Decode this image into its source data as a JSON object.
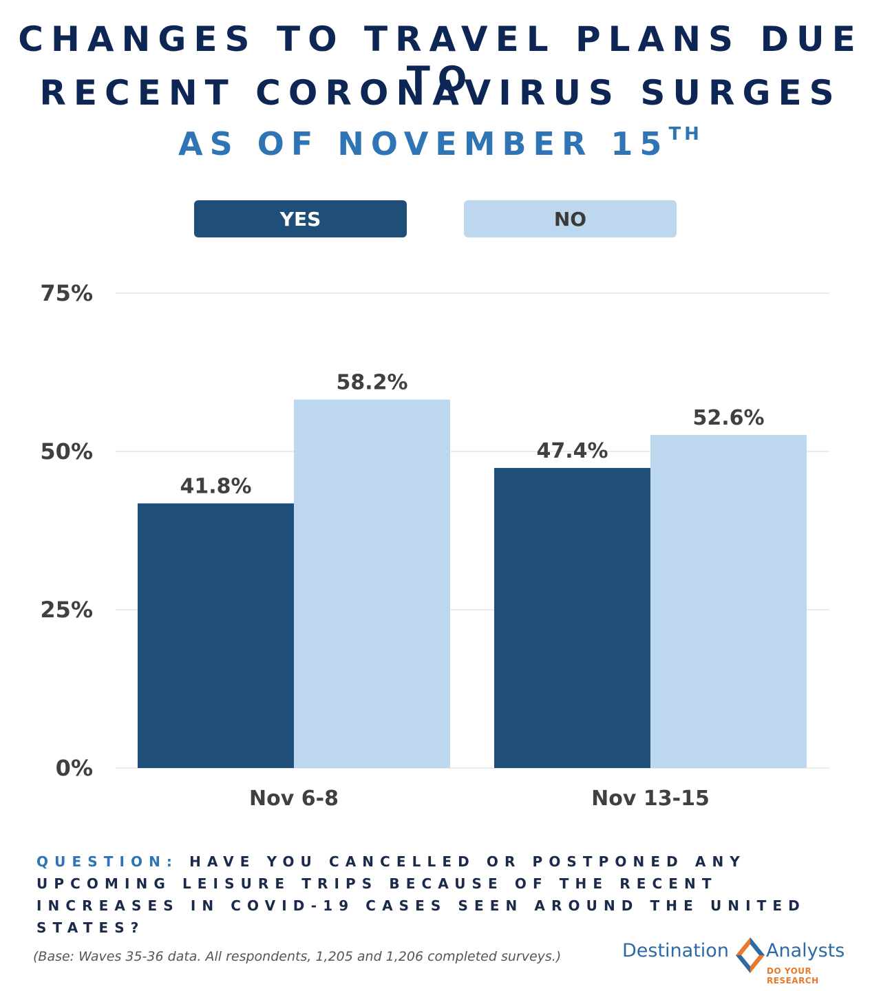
{
  "title_line1": "CHANGES TO TRAVEL PLANS DUE TO",
  "title_line2": "RECENT CORONAVIRUS SURGES",
  "subtitle": "AS OF NOVEMBER 15",
  "subtitle_suffix": "TH",
  "legend": {
    "yes": "YES",
    "no": "NO"
  },
  "colors": {
    "yes": "#1f4e79",
    "no": "#bdd7ee",
    "title": "#0e2654",
    "accent": "#2f74b5"
  },
  "chart_data": {
    "type": "bar",
    "categories": [
      "Nov 6-8",
      "Nov 13-15"
    ],
    "series": [
      {
        "name": "YES",
        "values": [
          41.8,
          47.4
        ],
        "labels": [
          "41.8%",
          "47.4%"
        ]
      },
      {
        "name": "NO",
        "values": [
          58.2,
          52.6
        ],
        "labels": [
          "58.2%",
          "52.6%"
        ]
      }
    ],
    "ylim": [
      0,
      75
    ],
    "yticks": [
      0,
      25,
      50,
      75
    ],
    "ytick_labels": [
      "0%",
      "25%",
      "50%",
      "75%"
    ],
    "grid": true,
    "legend_position": "top-center"
  },
  "question": {
    "label": "QUESTION:",
    "text": "HAVE YOU CANCELLED OR POSTPONED ANY UPCOMING LEISURE TRIPS BECAUSE OF THE RECENT INCREASES IN COVID-19 CASES SEEN AROUND THE UNITED STATES?"
  },
  "base_note": "(Base: Waves 35-36 data. All respondents, 1,205 and 1,206 completed surveys.)",
  "logo": {
    "word1": "Destination",
    "word2": "Analysts",
    "tagline": "DO YOUR RESEARCH"
  }
}
